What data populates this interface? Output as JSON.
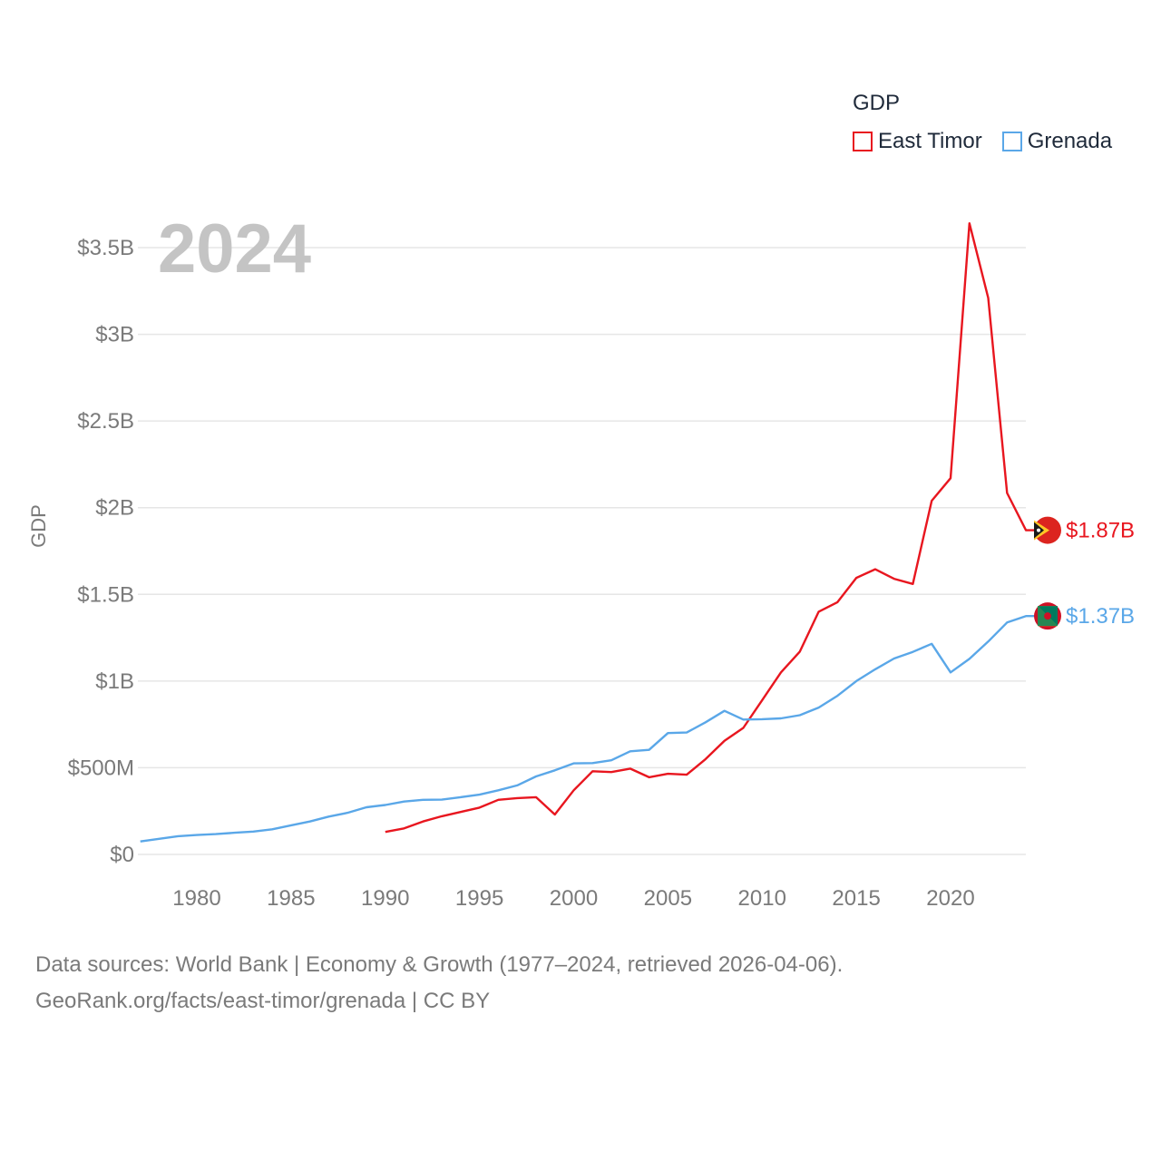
{
  "chart_data": {
    "type": "line",
    "title": "",
    "year_label": "2024",
    "legend_title": "GDP",
    "ylabel": "GDP",
    "xlabel": "",
    "xlim": [
      1977,
      2024
    ],
    "ylim": [
      0,
      3700000000
    ],
    "x_ticks": [
      1980,
      1985,
      1990,
      1995,
      2000,
      2005,
      2010,
      2015,
      2020
    ],
    "y_ticks": [
      {
        "value": 0,
        "label": "$0"
      },
      {
        "value": 500000000,
        "label": "$500M"
      },
      {
        "value": 1000000000,
        "label": "$1B"
      },
      {
        "value": 1500000000,
        "label": "$1.5B"
      },
      {
        "value": 2000000000,
        "label": "$2B"
      },
      {
        "value": 2500000000,
        "label": "$2.5B"
      },
      {
        "value": 3000000000,
        "label": "$3B"
      },
      {
        "value": 3500000000,
        "label": "$3.5B"
      }
    ],
    "grid": true,
    "series": [
      {
        "name": "East Timor",
        "color": "#e8161f",
        "end_label": "$1.87B",
        "x": [
          1990,
          1991,
          1992,
          1993,
          1994,
          1995,
          1996,
          1997,
          1998,
          1999,
          2000,
          2001,
          2002,
          2003,
          2004,
          2005,
          2006,
          2007,
          2008,
          2009,
          2010,
          2011,
          2012,
          2013,
          2014,
          2015,
          2016,
          2017,
          2018,
          2019,
          2020,
          2021,
          2022,
          2023,
          2024
        ],
        "values": [
          130000000,
          150000000,
          190000000,
          220000000,
          245000000,
          270000000,
          315000000,
          325000000,
          330000000,
          230000000,
          370000000,
          480000000,
          475000000,
          495000000,
          445000000,
          465000000,
          460000000,
          550000000,
          655000000,
          730000000,
          890000000,
          1050000000,
          1170000000,
          1400000000,
          1455000000,
          1595000000,
          1645000000,
          1590000000,
          1560000000,
          2040000000,
          2170000000,
          3640000000,
          3210000000,
          2085000000,
          1870000000
        ]
      },
      {
        "name": "Grenada",
        "color": "#5aa7e8",
        "end_label": "$1.37B",
        "x": [
          1977,
          1978,
          1979,
          1980,
          1981,
          1982,
          1983,
          1984,
          1985,
          1986,
          1987,
          1988,
          1989,
          1990,
          1991,
          1992,
          1993,
          1994,
          1995,
          1996,
          1997,
          1998,
          1999,
          2000,
          2001,
          2002,
          2003,
          2004,
          2005,
          2006,
          2007,
          2008,
          2009,
          2010,
          2011,
          2012,
          2013,
          2014,
          2015,
          2016,
          2017,
          2018,
          2019,
          2020,
          2021,
          2022,
          2023,
          2024
        ],
        "values": [
          75000000,
          90000000,
          105000000,
          112000000,
          117000000,
          125000000,
          132000000,
          145000000,
          168000000,
          190000000,
          218000000,
          240000000,
          272000000,
          285000000,
          305000000,
          315000000,
          316000000,
          330000000,
          345000000,
          370000000,
          398000000,
          450000000,
          485000000,
          525000000,
          527000000,
          543000000,
          595000000,
          603000000,
          700000000,
          703000000,
          762000000,
          828000000,
          778000000,
          780000000,
          785000000,
          803000000,
          847000000,
          915000000,
          1000000000,
          1068000000,
          1130000000,
          1168000000,
          1215000000,
          1050000000,
          1128000000,
          1228000000,
          1338000000,
          1375000000
        ]
      }
    ]
  },
  "footer": {
    "line1": "Data sources: World Bank | Economy & Growth (1977–2024, retrieved 2026-04-06).",
    "line2": "GeoRank.org/facts/east-timor/grenada | CC BY"
  },
  "flag_icons": {
    "east_timor": "east-timor-flag-icon",
    "grenada": "grenada-flag-icon"
  }
}
